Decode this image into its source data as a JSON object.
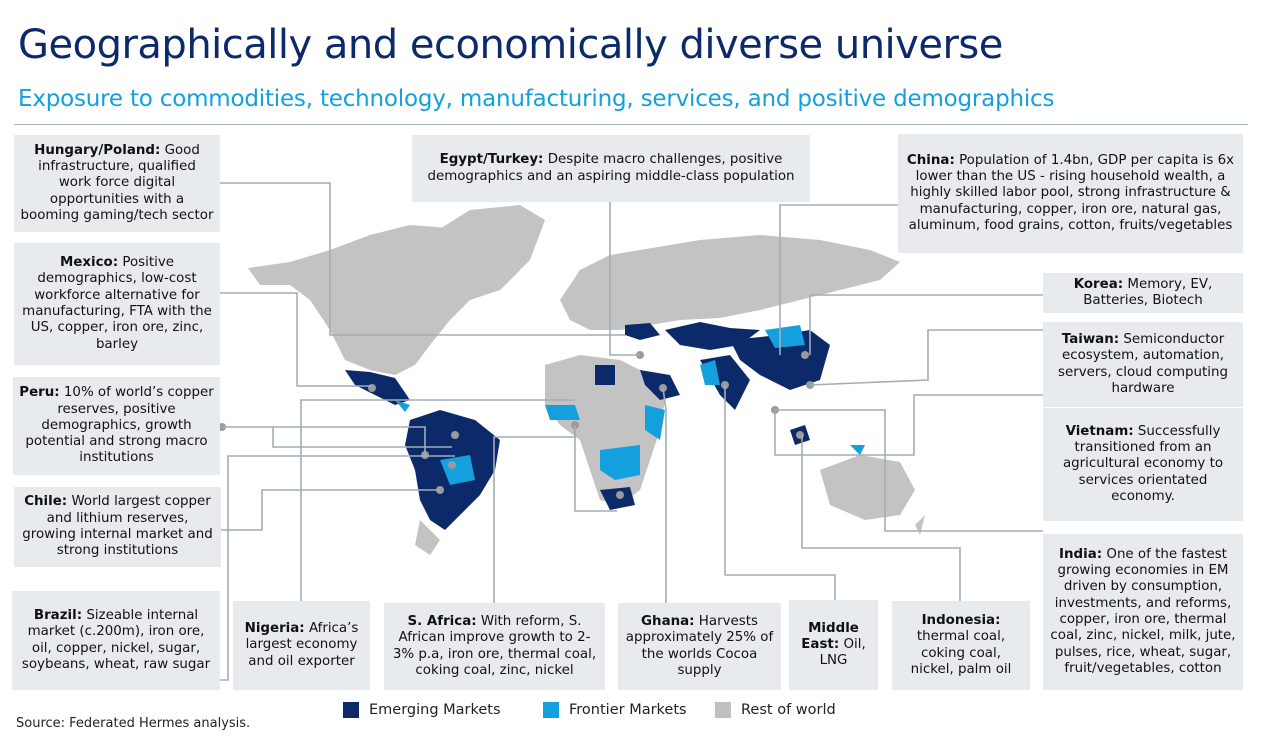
{
  "header": {
    "title": "Geographically and economically diverse universe",
    "subtitle": "Exposure to commodities, technology, manufacturing, services, and positive demographics"
  },
  "callouts": {
    "hungary_poland": {
      "label": "Hungary/Poland:",
      "text": "Good infrastructure, qualified work force digital opportunities with a booming gaming/tech sector"
    },
    "mexico": {
      "label": "Mexico:",
      "text": "Positive demographics, low-cost workforce alternative for manufacturing, FTA with the US, copper, iron ore, zinc, barley"
    },
    "peru": {
      "label": "Peru:",
      "text": "10% of world’s copper reserves, positive demographics, growth potential and strong macro institutions"
    },
    "chile": {
      "label": "Chile:",
      "text": "World largest copper and lithium reserves, growing internal market and strong institutions"
    },
    "brazil": {
      "label": "Brazil:",
      "text": "Sizeable internal market (c.200m), iron ore, oil, copper, nickel, sugar, soybeans, wheat, raw sugar"
    },
    "nigeria": {
      "label": "Nigeria:",
      "text": "Africa’s largest economy and oil exporter"
    },
    "s_africa": {
      "label": "S. Africa:",
      "text": "With reform, S. African improve growth to 2-3% p.a, iron ore, thermal coal, coking coal, zinc, nickel"
    },
    "ghana": {
      "label": "Ghana:",
      "text": "Harvests approximately 25% of the worlds Cocoa supply"
    },
    "middle_east": {
      "label": "Middle East:",
      "text": "Oil, LNG"
    },
    "indonesia": {
      "label": "Indonesia:",
      "text": "thermal coal, coking coal, nickel, palm oil"
    },
    "india": {
      "label": "India:",
      "text": "One of the fastest growing economies in EM driven by consumption, investments, and reforms, copper, iron ore, thermal coal, zinc, nickel, milk, jute, pulses, rice, wheat, sugar, fruit/vegetables, cotton"
    },
    "vietnam": {
      "label": "Vietnam:",
      "text": "Successfully transitioned from an agricultural economy to services orientated economy."
    },
    "taiwan": {
      "label": "Taiwan:",
      "text": "Semiconductor ecosystem, automation, servers, cloud computing hardware"
    },
    "korea": {
      "label": "Korea:",
      "text": "Memory, EV, Batteries, Biotech"
    },
    "china": {
      "label": "China:",
      "text": "Population of 1.4bn, GDP per capita is 6x lower than the US - rising  household wealth, a highly skilled labor pool, strong infrastructure & manufacturing, copper, iron ore, natural gas, aluminum, food grains, cotton, fruits/vegetables"
    },
    "egypt_turkey": {
      "label": "Egypt/Turkey:",
      "text": "Despite macro challenges, positive demographics and an aspiring middle-class population"
    }
  },
  "legend": [
    {
      "label": "Emerging Markets",
      "color": "#0c2a6a"
    },
    {
      "label": "Frontier Markets",
      "color": "#13a0dd"
    },
    {
      "label": "Rest of world",
      "color": "#c0c0c0"
    }
  ],
  "source": "Source: Federated Hermes analysis."
}
